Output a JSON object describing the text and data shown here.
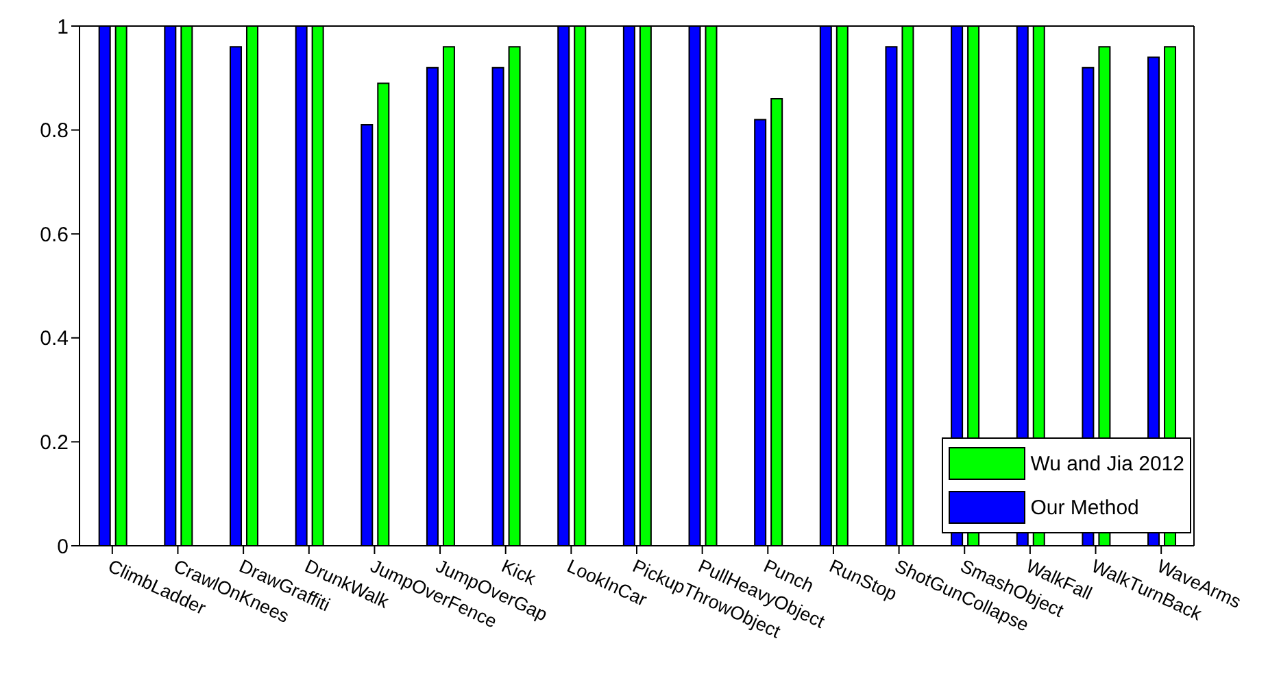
{
  "chart_data": {
    "type": "bar",
    "categories": [
      "ClimbLadder",
      "CrawlOnKnees",
      "DrawGraffiti",
      "DrunkWalk",
      "JumpOverFence",
      "JumpOverGap",
      "Kick",
      "LookInCar",
      "PickupThrowObject",
      "PullHeavyObject",
      "Punch",
      "RunStop",
      "ShotGunCollapse",
      "SmashObject",
      "WalkFall",
      "WalkTurnBack",
      "WaveArms"
    ],
    "series": [
      {
        "name": "Our Method",
        "color": "#0000ff",
        "values": [
          1,
          1,
          0.96,
          1,
          0.81,
          0.92,
          0.92,
          1,
          1,
          1,
          0.82,
          1,
          0.96,
          1,
          1,
          0.92,
          0.94
        ]
      },
      {
        "name": "Wu and Jia 2012",
        "color": "#00ff00",
        "values": [
          1,
          1,
          1,
          1,
          0.89,
          0.96,
          0.96,
          1,
          1,
          1,
          0.86,
          1,
          1,
          1,
          1,
          0.96,
          0.96
        ]
      }
    ],
    "ylim": [
      0,
      1
    ],
    "yticks": [
      0,
      0.2,
      0.4,
      0.6,
      0.8,
      1
    ],
    "grid": false,
    "legend": "bottom right"
  }
}
